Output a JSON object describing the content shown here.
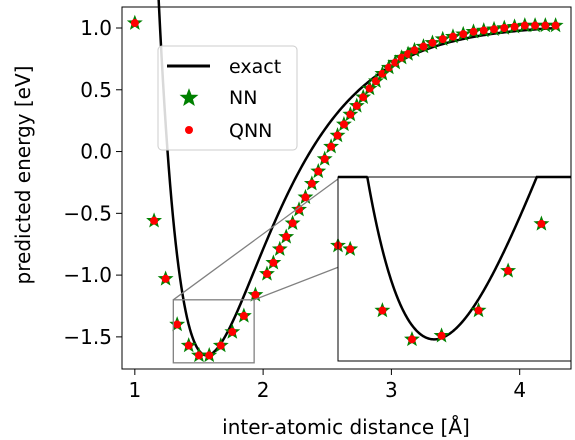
{
  "chart_data": {
    "type": "line",
    "xlabel": "inter-atomic distance [Å]",
    "ylabel": "predicted energy [eV]",
    "xlim": [
      0.9,
      4.4
    ],
    "ylim": [
      -1.76,
      1.17
    ],
    "xticks": [
      "1",
      "2",
      "3",
      "4"
    ],
    "yticks": [
      "1.0",
      "0.5",
      "0.0",
      "−0.5",
      "−1.0",
      "−1.5"
    ],
    "grid": false,
    "legend_position": "upper-left",
    "colors": {
      "exact": "#000000",
      "nn": "#008000",
      "qnn": "#ff0000",
      "zoom_box": "#808080"
    },
    "series": [
      {
        "name": "exact",
        "style": "line"
      },
      {
        "name": "NN",
        "style": "star-marker"
      },
      {
        "name": "QNN",
        "style": "dot-marker"
      }
    ],
    "points": [
      {
        "x": 1.0,
        "y": 1.04
      },
      {
        "x": 1.15,
        "y": -0.56
      },
      {
        "x": 1.24,
        "y": -1.03
      },
      {
        "x": 1.33,
        "y": -1.4
      },
      {
        "x": 1.42,
        "y": -1.57
      },
      {
        "x": 1.5,
        "y": -1.65
      },
      {
        "x": 1.58,
        "y": -1.65
      },
      {
        "x": 1.67,
        "y": -1.57
      },
      {
        "x": 1.76,
        "y": -1.46
      },
      {
        "x": 1.85,
        "y": -1.33
      },
      {
        "x": 1.94,
        "y": -1.16
      },
      {
        "x": 2.03,
        "y": -0.99
      },
      {
        "x": 2.08,
        "y": -0.9
      },
      {
        "x": 2.13,
        "y": -0.79
      },
      {
        "x": 2.18,
        "y": -0.69
      },
      {
        "x": 2.23,
        "y": -0.58
      },
      {
        "x": 2.28,
        "y": -0.47
      },
      {
        "x": 2.33,
        "y": -0.37
      },
      {
        "x": 2.38,
        "y": -0.26
      },
      {
        "x": 2.43,
        "y": -0.16
      },
      {
        "x": 2.48,
        "y": -0.06
      },
      {
        "x": 2.53,
        "y": 0.04
      },
      {
        "x": 2.58,
        "y": 0.13
      },
      {
        "x": 2.63,
        "y": 0.22
      },
      {
        "x": 2.68,
        "y": 0.3
      },
      {
        "x": 2.73,
        "y": 0.37
      },
      {
        "x": 2.78,
        "y": 0.44
      },
      {
        "x": 2.83,
        "y": 0.51
      },
      {
        "x": 2.88,
        "y": 0.57
      },
      {
        "x": 2.93,
        "y": 0.63
      },
      {
        "x": 2.98,
        "y": 0.68
      },
      {
        "x": 3.03,
        "y": 0.72
      },
      {
        "x": 3.08,
        "y": 0.76
      },
      {
        "x": 3.13,
        "y": 0.79
      },
      {
        "x": 3.18,
        "y": 0.82
      },
      {
        "x": 3.25,
        "y": 0.85
      },
      {
        "x": 3.32,
        "y": 0.88
      },
      {
        "x": 3.4,
        "y": 0.91
      },
      {
        "x": 3.48,
        "y": 0.93
      },
      {
        "x": 3.56,
        "y": 0.95
      },
      {
        "x": 3.64,
        "y": 0.97
      },
      {
        "x": 3.72,
        "y": 0.98
      },
      {
        "x": 3.8,
        "y": 0.99
      },
      {
        "x": 3.88,
        "y": 1.0
      },
      {
        "x": 3.96,
        "y": 1.01
      },
      {
        "x": 4.04,
        "y": 1.02
      },
      {
        "x": 4.12,
        "y": 1.02
      },
      {
        "x": 4.2,
        "y": 1.02
      },
      {
        "x": 4.28,
        "y": 1.02
      }
    ],
    "inset": {
      "xlim": [
        1.3,
        1.93
      ],
      "ylim": [
        -1.71,
        -1.2
      ],
      "points": [
        {
          "x": 1.3,
          "y": -1.39
        },
        {
          "x": 1.333,
          "y": -1.4
        },
        {
          "x": 1.42,
          "y": -1.57
        },
        {
          "x": 1.5,
          "y": -1.65
        },
        {
          "x": 1.58,
          "y": -1.64
        },
        {
          "x": 1.68,
          "y": -1.57
        },
        {
          "x": 1.76,
          "y": -1.46
        },
        {
          "x": 1.85,
          "y": -1.33
        }
      ]
    }
  }
}
